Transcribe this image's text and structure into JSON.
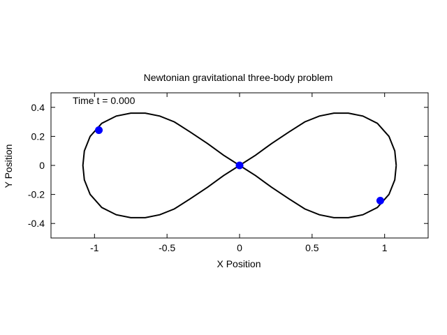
{
  "chart_data": {
    "type": "scatter",
    "title": "Newtonian gravitational three-body problem",
    "xlabel": "X Position",
    "ylabel": "Y Position",
    "annotation": "Time t = 0.000",
    "xlim": [
      -1.3,
      1.3
    ],
    "ylim": [
      -0.5,
      0.5
    ],
    "xticks": [
      -1,
      -0.5,
      0,
      0.5,
      1
    ],
    "xtick_labels": [
      "-1",
      "-0.5",
      "0",
      "0.5",
      "1"
    ],
    "yticks": [
      -0.4,
      -0.2,
      0,
      0.2,
      0.4
    ],
    "ytick_labels": [
      "-0.4",
      "-0.2",
      "0",
      "0.2",
      "0.4"
    ],
    "grid": false,
    "series": [
      {
        "kind": "line",
        "color": "#000000",
        "shape": "figure-eight",
        "x": [
          1.08,
          1.07,
          1.03,
          0.95,
          0.85,
          0.75,
          0.65,
          0.55,
          0.45,
          0.34,
          0.22,
          0.11,
          0.0,
          -0.11,
          -0.22,
          -0.34,
          -0.45,
          -0.55,
          -0.65,
          -0.75,
          -0.85,
          -0.95,
          -1.03,
          -1.07,
          -1.08,
          -1.07,
          -1.03,
          -0.95,
          -0.85,
          -0.75,
          -0.65,
          -0.55,
          -0.45,
          -0.34,
          -0.22,
          -0.11,
          0.0,
          0.11,
          0.22,
          0.34,
          0.45,
          0.55,
          0.65,
          0.75,
          0.85,
          0.95,
          1.03,
          1.07,
          1.08
        ],
        "y": [
          0.0,
          0.1,
          0.2,
          0.29,
          0.34,
          0.36,
          0.36,
          0.34,
          0.3,
          0.23,
          0.15,
          0.07,
          0.0,
          -0.07,
          -0.15,
          -0.23,
          -0.3,
          -0.34,
          -0.36,
          -0.36,
          -0.34,
          -0.29,
          -0.2,
          -0.1,
          0.0,
          0.1,
          0.2,
          0.29,
          0.34,
          0.36,
          0.36,
          0.34,
          0.3,
          0.23,
          0.15,
          0.07,
          0.0,
          -0.07,
          -0.15,
          -0.23,
          -0.3,
          -0.34,
          -0.36,
          -0.36,
          -0.34,
          -0.29,
          -0.2,
          -0.1,
          0.0
        ]
      },
      {
        "kind": "points",
        "color": "#0000ff",
        "x": [
          -0.97,
          0.0,
          0.97
        ],
        "y": [
          0.243,
          0.0,
          -0.243
        ]
      }
    ]
  }
}
